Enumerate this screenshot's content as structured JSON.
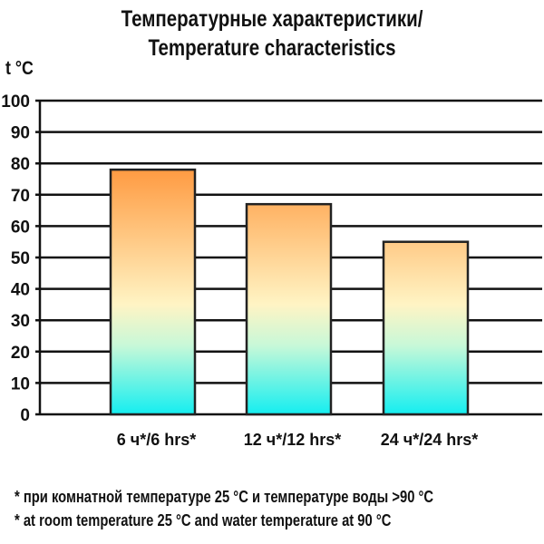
{
  "chart_data": {
    "type": "bar",
    "title": "Температурные характеристики/",
    "subtitle": "Temperature characteristics",
    "ylabel": "t °C",
    "xlabel": "",
    "categories": [
      "6 ч*/6 hrs*",
      "12 ч*/12 hrs*",
      "24 ч*/24 hrs*"
    ],
    "values": [
      78,
      67,
      55
    ],
    "ylim": [
      0,
      100
    ],
    "yticks": [
      0,
      10,
      20,
      30,
      40,
      50,
      60,
      70,
      80,
      90,
      100
    ],
    "grid": true,
    "legend": "none",
    "colors": {
      "bar_top": "#ff6a00",
      "bar_middle": "#fff4c4",
      "bar_bottom": "#14eef0",
      "outline": "#222222"
    }
  },
  "footnotes": [
    "* при комнатной температуре 25 °C и температуре воды >90 °C",
    "* at room temperature 25 °C and water temperature at 90 °C"
  ]
}
